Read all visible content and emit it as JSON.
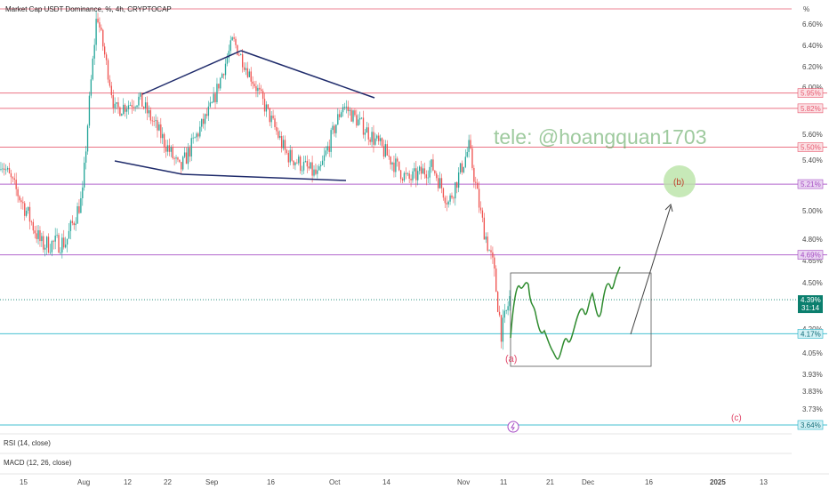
{
  "header": {
    "title": "Market Cap USDT Dominance, %, 4h, CRYPTOCAP"
  },
  "indicators": [
    {
      "label": "RSI (14, close)"
    },
    {
      "label": "MACD (12, 26, close)"
    }
  ],
  "watermark": {
    "text": "tele: @hoangquan1703"
  },
  "wave_labels": {
    "a": "(a)",
    "b": "(b)",
    "c": "(c)"
  },
  "chart_data": {
    "type": "candlestick",
    "title": "Market Cap USDT Dominance, %, 4h, CRYPTOCAP",
    "y_unit": "%",
    "y_ticks": [
      "6.60%",
      "6.40%",
      "6.20%",
      "6.00%",
      "5.60%",
      "5.40%",
      "5.00%",
      "4.80%",
      "4.65%",
      "4.50%",
      "4.20%",
      "4.05%",
      "3.93%",
      "3.83%",
      "3.73%"
    ],
    "x_ticks": [
      "15",
      "Aug",
      "12",
      "22",
      "Sep",
      "16",
      "Oct",
      "14",
      "Nov",
      "11",
      "21",
      "Dec",
      "16",
      "2025",
      "13"
    ],
    "horizontal_levels": [
      {
        "value": 5.95,
        "label": "5.95%",
        "color": "#e85a6f"
      },
      {
        "value": 5.82,
        "label": "5.82%",
        "color": "#e85a6f"
      },
      {
        "value": 5.5,
        "label": "5.50%",
        "color": "#e85a6f"
      },
      {
        "value": 5.21,
        "label": "5.21%",
        "color": "#a64bc4"
      },
      {
        "value": 4.69,
        "label": "4.69%",
        "color": "#a64bc4"
      },
      {
        "value": 4.17,
        "label": "4.17%",
        "color": "#26b5c9"
      },
      {
        "value": 3.64,
        "label": "3.64%",
        "color": "#26b5c9"
      }
    ],
    "current_price": {
      "value": 4.39,
      "label": "4.39%",
      "countdown": "31:14",
      "color": "#0b7f6e"
    },
    "candles": [
      {
        "x": 0.0,
        "close": 5.4
      },
      {
        "x": 0.05,
        "close": 4.76
      },
      {
        "x": 0.08,
        "close": 4.78
      },
      {
        "x": 0.1,
        "close": 5.1
      },
      {
        "x": 0.118,
        "close": 6.7
      },
      {
        "x": 0.14,
        "close": 5.8
      },
      {
        "x": 0.17,
        "close": 5.9
      },
      {
        "x": 0.22,
        "close": 5.32
      },
      {
        "x": 0.26,
        "close": 5.85
      },
      {
        "x": 0.285,
        "close": 6.45
      },
      {
        "x": 0.32,
        "close": 5.9
      },
      {
        "x": 0.35,
        "close": 5.45
      },
      {
        "x": 0.39,
        "close": 5.27
      },
      {
        "x": 0.42,
        "close": 5.85
      },
      {
        "x": 0.46,
        "close": 5.55
      },
      {
        "x": 0.5,
        "close": 5.24
      },
      {
        "x": 0.53,
        "close": 5.35
      },
      {
        "x": 0.55,
        "close": 5.06
      },
      {
        "x": 0.575,
        "close": 5.5
      },
      {
        "x": 0.59,
        "close": 4.95
      },
      {
        "x": 0.605,
        "close": 4.6
      },
      {
        "x": 0.615,
        "close": 4.17
      },
      {
        "x": 0.625,
        "close": 4.4
      }
    ],
    "annotations": [
      {
        "type": "triangle",
        "points": [
          [
            5.93
          ],
          [
            6.33
          ],
          [
            5.92
          ],
          [
            5.23
          ],
          [
            5.27
          ],
          [
            5.38
          ]
        ]
      },
      {
        "type": "projection_box",
        "top": 4.56,
        "bottom": 4.03
      },
      {
        "type": "arrow",
        "from": 4.22,
        "to": 5.06
      }
    ]
  }
}
